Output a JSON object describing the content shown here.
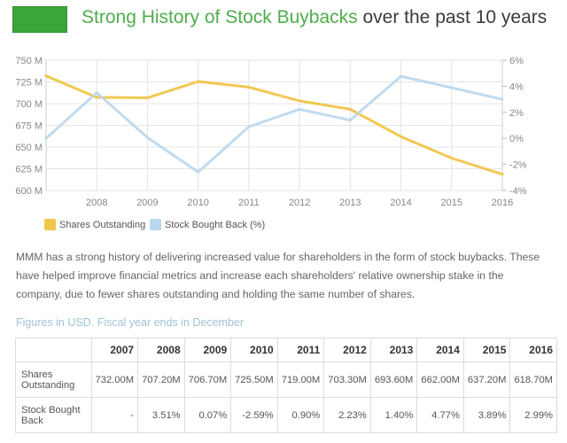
{
  "header": {
    "title_highlight": "Strong History of Stock Buybacks",
    "title_rest": " over the past 10 years",
    "swatch_color": "#3aa63a"
  },
  "chart_data": {
    "type": "line",
    "x": [
      "2007",
      "2008",
      "2009",
      "2010",
      "2011",
      "2012",
      "2013",
      "2014",
      "2015",
      "2016"
    ],
    "x_ticks": [
      "2008",
      "2009",
      "2010",
      "2011",
      "2012",
      "2013",
      "2014",
      "2015",
      "2016"
    ],
    "y_left": {
      "ylim": [
        600,
        750
      ],
      "ticks": [
        "600 M",
        "625 M",
        "650 M",
        "675 M",
        "700 M",
        "725 M",
        "750 M"
      ],
      "tick_values": [
        600,
        625,
        650,
        675,
        700,
        725,
        750
      ]
    },
    "y_right": {
      "ylim": [
        -4,
        6
      ],
      "ticks": [
        "-4%",
        "-2%",
        "0%",
        "2%",
        "4%",
        "6%"
      ],
      "tick_values": [
        -4,
        -2,
        0,
        2,
        4,
        6
      ]
    },
    "series": [
      {
        "name": "Shares Outstanding",
        "axis": "left",
        "color": "#f0c54a",
        "values": [
          732.0,
          707.2,
          706.7,
          725.5,
          719.0,
          703.3,
          693.6,
          662.0,
          637.2,
          618.7
        ]
      },
      {
        "name": "Stock Bought Back (%)",
        "axis": "right",
        "color": "#b9d7ec",
        "values": [
          0,
          3.51,
          0.07,
          -2.59,
          0.9,
          2.23,
          1.4,
          4.77,
          3.89,
          2.99
        ]
      }
    ],
    "grid": true,
    "legend_position": "bottom-left"
  },
  "description": "MMM has a strong history of delivering increased value for shareholders in the form of stock buybacks. These have helped improve financial metrics and increase each shareholders' relative ownership stake in the company, due to fewer shares outstanding and holding the same number of shares.",
  "table": {
    "note": "Figures in USD. Fiscal year ends in December",
    "years": [
      "2007",
      "2008",
      "2009",
      "2010",
      "2011",
      "2012",
      "2013",
      "2014",
      "2015",
      "2016"
    ],
    "rows": [
      {
        "label": "Shares Outstanding",
        "values": [
          "732.00M",
          "707.20M",
          "706.70M",
          "725.50M",
          "719.00M",
          "703.30M",
          "693.60M",
          "662.00M",
          "637.20M",
          "618.70M"
        ]
      },
      {
        "label": "Stock Bought Back",
        "values": [
          "-",
          "3.51%",
          "0.07%",
          "-2.59%",
          "0.90%",
          "2.23%",
          "1.40%",
          "4.77%",
          "3.89%",
          "2.99%"
        ]
      }
    ]
  }
}
